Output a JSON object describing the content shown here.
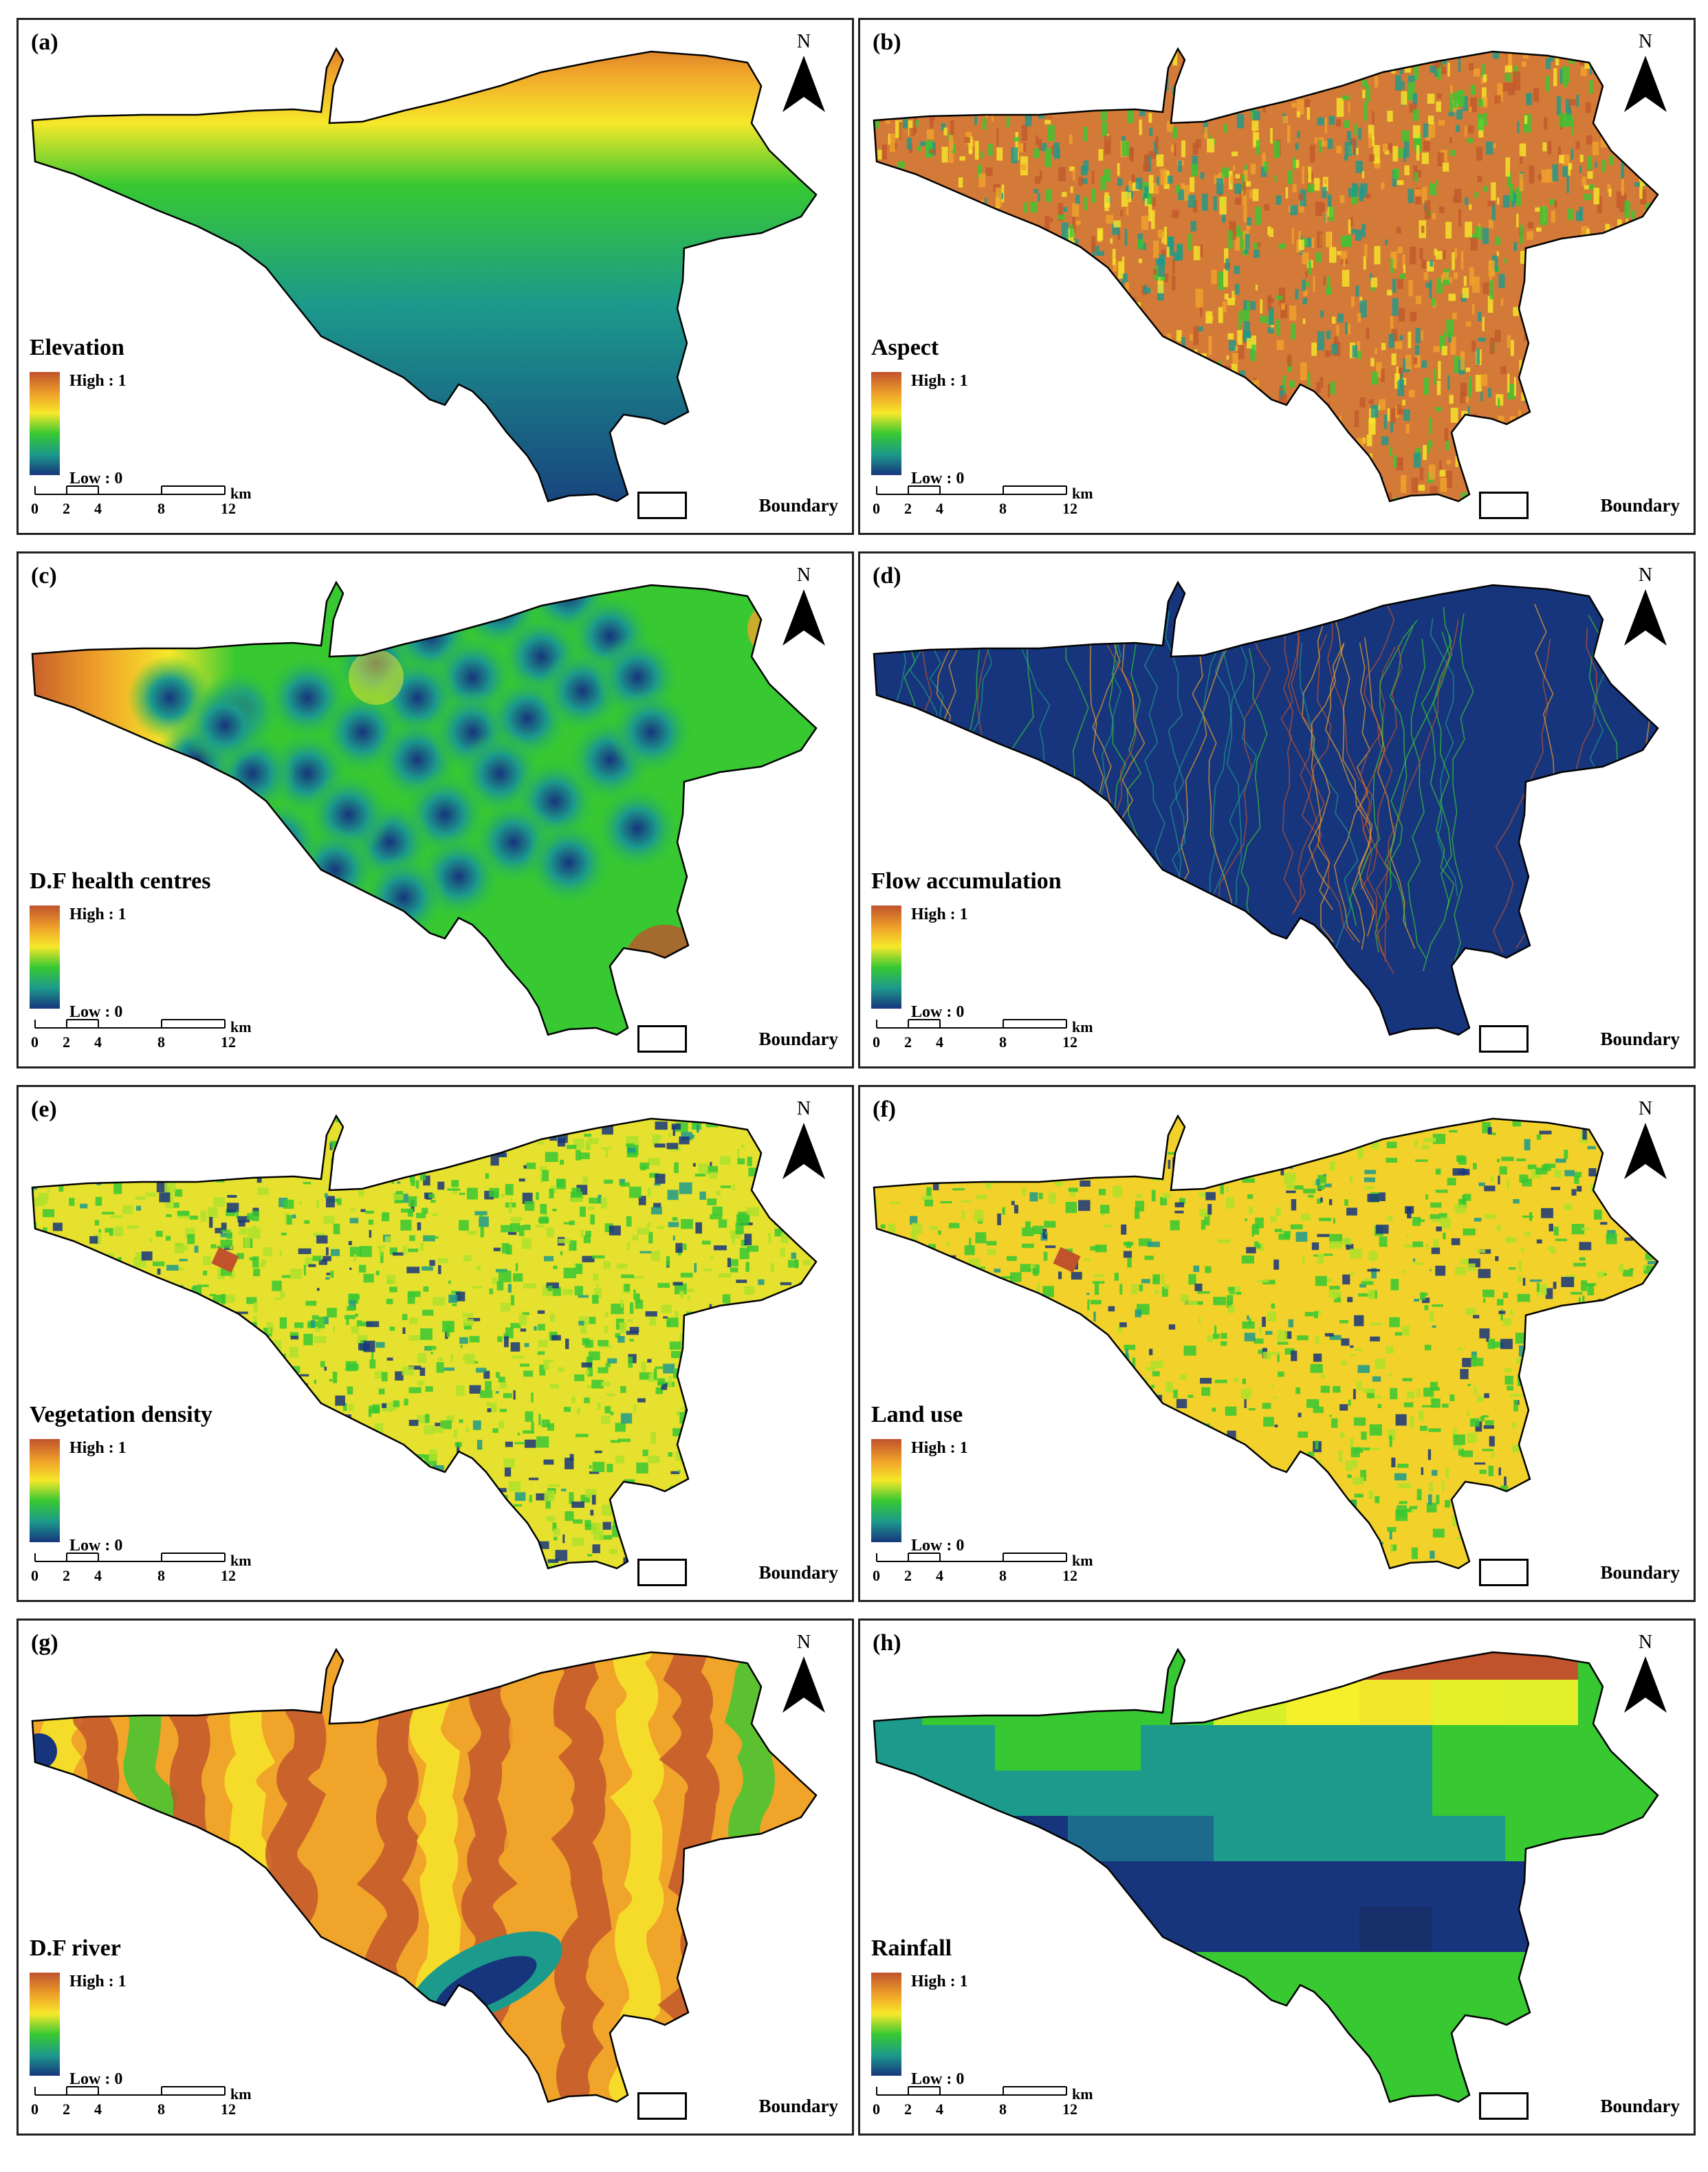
{
  "colors": {
    "high": "#c0522c",
    "orange": "#f0a42a",
    "yellow": "#f6e82a",
    "green": "#37c832",
    "teal": "#1c9a8c",
    "low": "#17357c"
  },
  "north_label": "N",
  "north_icon": "north-arrow-icon",
  "legend_high": "High : 1",
  "legend_low": "Low : 0",
  "boundary_label": "Boundary",
  "scale": {
    "ticks": [
      "0",
      "2",
      "4",
      "8",
      "12"
    ],
    "unit": "km"
  },
  "panels": [
    {
      "label": "(a)",
      "title": "Elevation",
      "style": "elevation"
    },
    {
      "label": "(b)",
      "title": "Aspect",
      "style": "aspect"
    },
    {
      "label": "(c)",
      "title": "D.F health centres",
      "style": "health"
    },
    {
      "label": "(d)",
      "title": "Flow accumulation",
      "style": "flow"
    },
    {
      "label": "(e)",
      "title": "Vegetation density",
      "style": "vegetation"
    },
    {
      "label": "(f)",
      "title": "Land use",
      "style": "landuse"
    },
    {
      "label": "(g)",
      "title": "D.F river",
      "style": "river"
    },
    {
      "label": "(h)",
      "title": "Rainfall",
      "style": "rainfall"
    }
  ]
}
